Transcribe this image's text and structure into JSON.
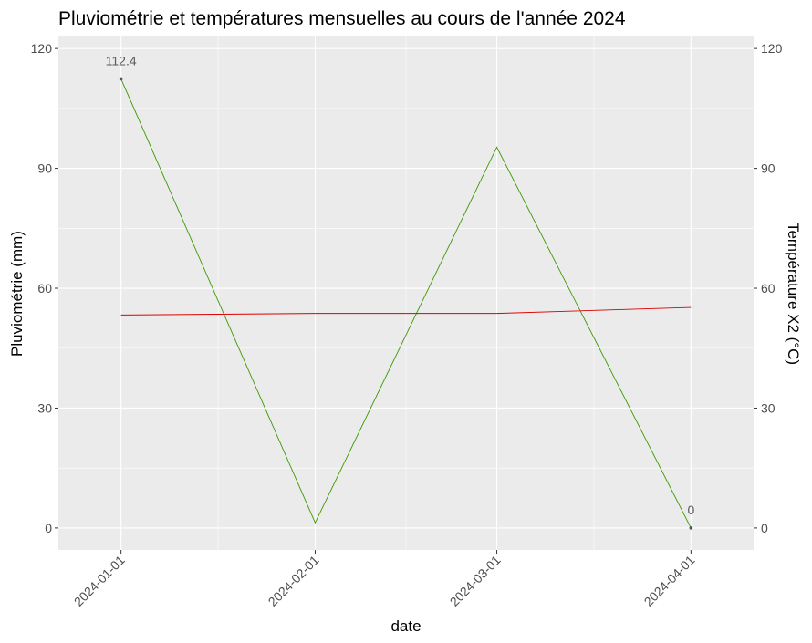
{
  "chart_data": {
    "type": "line",
    "title": "Pluviométrie et températures mensuelles au cours de l'année 2024",
    "xlabel": "date",
    "ylabel": "Pluviométrie (mm)",
    "y2label": "Température X2 (°C)",
    "x": [
      "2024-01-01",
      "2024-02-01",
      "2024-03-01",
      "2024-04-01"
    ],
    "xlim": [
      "2023-12-22",
      "2024-04-11"
    ],
    "ylim": [
      -5.5,
      123
    ],
    "yticks": [
      0,
      30,
      60,
      90,
      120
    ],
    "y2ticks": [
      0,
      30,
      60,
      90,
      120
    ],
    "grid": true,
    "series": [
      {
        "values": [
          112.4,
          1.3,
          95.3,
          0
        ],
        "color": "#3a9a00",
        "point_labels": [
          "112.4",
          "",
          "",
          "0"
        ]
      },
      {
        "values": [
          53.3,
          53.7,
          53.7,
          55.2
        ],
        "color": "#dd0000"
      }
    ],
    "panel_background": "#ebebeb",
    "grid_color": "#ffffff"
  }
}
